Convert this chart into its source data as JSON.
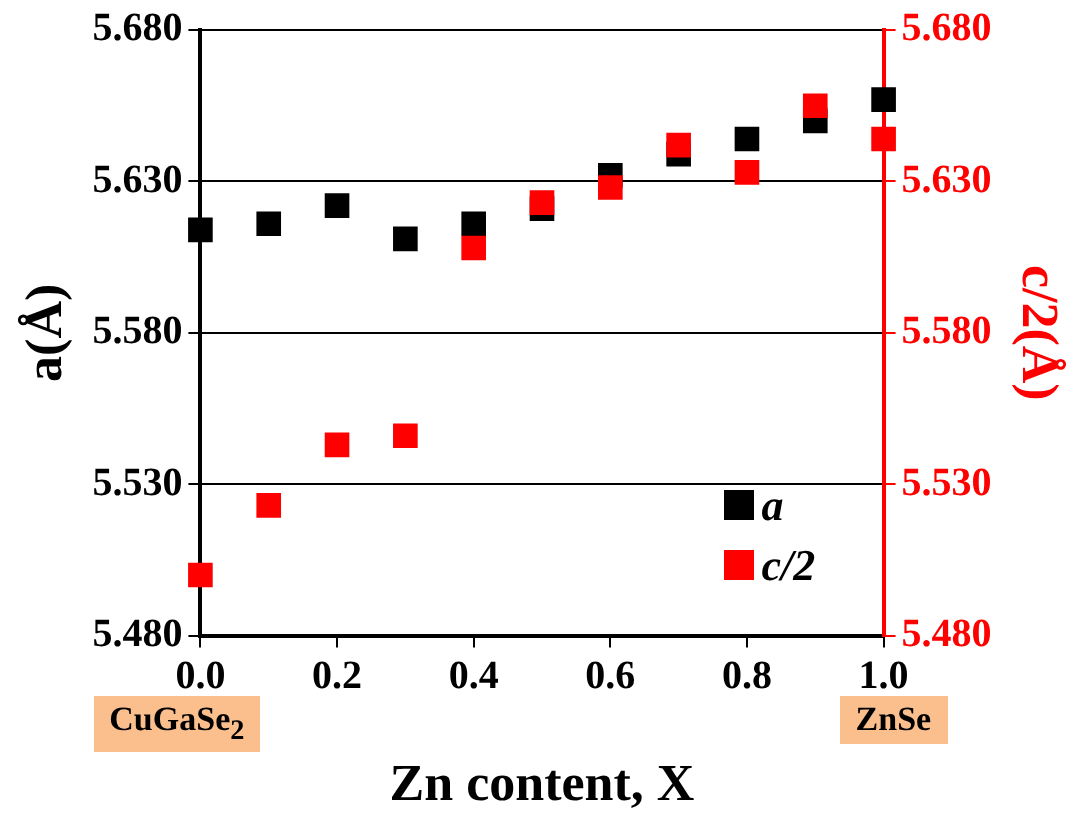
{
  "chart_data": {
    "type": "scatter",
    "xlabel": "Zn content, X",
    "ylabel": "a(Å)",
    "y2label": "c/2(Å)",
    "x": [
      0,
      0.1,
      0.2,
      0.3,
      0.4,
      0.5,
      0.6,
      0.7,
      0.8,
      0.9,
      1.0
    ],
    "series": [
      {
        "name": "a",
        "color": "#000000",
        "values": [
          5.614,
          5.616,
          5.622,
          5.611,
          5.616,
          5.621,
          5.632,
          5.639,
          5.644,
          5.65,
          5.657
        ]
      },
      {
        "name": "c/2",
        "color": "#ff0000",
        "axis": "y2",
        "values": [
          5.5,
          5.523,
          5.543,
          5.546,
          5.608,
          5.623,
          5.628,
          5.642,
          5.633,
          5.655,
          5.644
        ]
      }
    ],
    "xlim": [
      0,
      1
    ],
    "xticks": [
      {
        "value": 0,
        "label": "0.0"
      },
      {
        "value": 0.2,
        "label": "0.2"
      },
      {
        "value": 0.4,
        "label": "0.4"
      },
      {
        "value": 0.6,
        "label": "0.6"
      },
      {
        "value": 0.8,
        "label": "0.8"
      },
      {
        "value": 1,
        "label": "1.0"
      }
    ],
    "ylim": [
      5.48,
      5.68
    ],
    "yticks": [
      {
        "value": 5.48,
        "label": "5.480"
      },
      {
        "value": 5.53,
        "label": "5.530"
      },
      {
        "value": 5.58,
        "label": "5.580"
      },
      {
        "value": 5.63,
        "label": "5.630"
      },
      {
        "value": 5.68,
        "label": "5.680"
      }
    ],
    "y2lim": [
      5.48,
      5.68
    ],
    "y2ticks": [
      {
        "value": 5.48,
        "label": "5.480"
      },
      {
        "value": 5.53,
        "label": "5.530"
      },
      {
        "value": 5.58,
        "label": "5.580"
      },
      {
        "value": 5.63,
        "label": "5.630"
      },
      {
        "value": 5.68,
        "label": "5.680"
      }
    ],
    "annotations": [
      "CuGaSe$_{2}$",
      "ZnSe"
    ],
    "grid": "y",
    "legend": "bottom right",
    "marker": "square"
  }
}
